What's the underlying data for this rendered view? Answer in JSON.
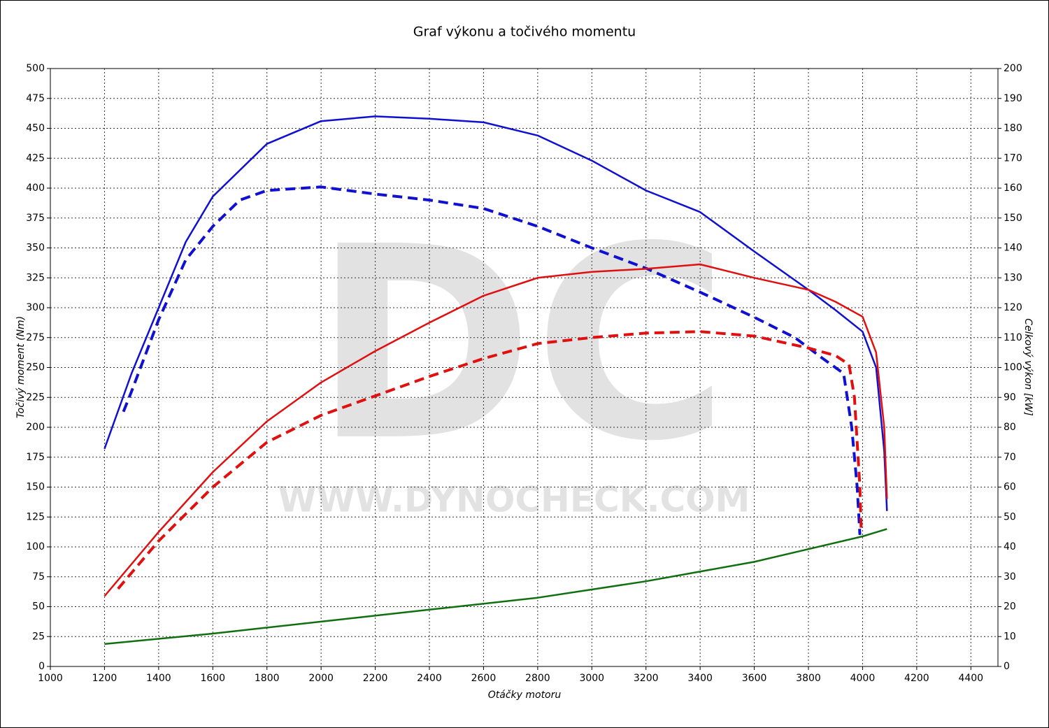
{
  "chart_data": {
    "type": "line",
    "title": "Graf výkonu a točivého momentu",
    "xlabel": "Otáčky motoru",
    "ylabel": "Točivý moment (Nm)",
    "y2label": "Celkový výkon [kW]",
    "watermark": {
      "logo": "DC",
      "url": "WWW.DYNOCHECK.COM"
    },
    "xlim": [
      1000,
      4500
    ],
    "xticks": [
      1000,
      1200,
      1400,
      1600,
      1800,
      2000,
      2200,
      2400,
      2600,
      2800,
      3000,
      3200,
      3400,
      3600,
      3800,
      4000,
      4200,
      4400
    ],
    "ylim": [
      0,
      500
    ],
    "yticks": [
      0,
      25,
      50,
      75,
      100,
      125,
      150,
      175,
      200,
      225,
      250,
      275,
      300,
      325,
      350,
      375,
      400,
      425,
      450,
      475,
      500
    ],
    "y2lim": [
      0,
      200
    ],
    "y2ticks": [
      0,
      10,
      20,
      30,
      40,
      50,
      60,
      70,
      80,
      90,
      100,
      110,
      120,
      130,
      140,
      150,
      160,
      170,
      180,
      190,
      200
    ],
    "grid": true,
    "series": [
      {
        "color": "#1010d0",
        "dashed": false,
        "x": [
          1200,
          1300,
          1400,
          1500,
          1600,
          1800,
          2000,
          2200,
          2400,
          2600,
          2800,
          3000,
          3200,
          3400,
          3600,
          3800,
          3900,
          4000,
          4050,
          4080,
          4090
        ],
        "values": [
          182,
          245,
          300,
          355,
          393,
          437,
          456,
          460,
          458,
          455,
          444,
          423,
          398,
          380,
          347,
          315,
          298,
          280,
          250,
          180,
          130
        ]
      },
      {
        "color": "#1010d0",
        "dashed": true,
        "x": [
          1270,
          1300,
          1400,
          1500,
          1600,
          1700,
          1800,
          2000,
          2200,
          2400,
          2600,
          2800,
          3000,
          3200,
          3400,
          3600,
          3750,
          3850,
          3930,
          3960,
          3980,
          3990
        ],
        "values": [
          213,
          230,
          290,
          340,
          368,
          390,
          398,
          401,
          395,
          390,
          383,
          368,
          350,
          333,
          313,
          292,
          275,
          258,
          245,
          200,
          150,
          110
        ]
      },
      {
        "color": "#e01010",
        "dashed": false,
        "axis": "y2",
        "x": [
          1200,
          1400,
          1600,
          1800,
          2000,
          2200,
          2400,
          2600,
          2800,
          3000,
          3200,
          3400,
          3600,
          3800,
          3900,
          4000,
          4050,
          4080,
          4090
        ],
        "values": [
          23.5,
          45,
          65,
          82,
          95,
          105.5,
          115,
          124,
          130,
          132,
          133,
          134.5,
          130,
          126,
          122,
          117,
          105,
          80,
          56
        ]
      },
      {
        "color": "#e01010",
        "dashed": true,
        "axis": "y2",
        "x": [
          1250,
          1400,
          1600,
          1800,
          2000,
          2200,
          2400,
          2600,
          2800,
          3000,
          3200,
          3400,
          3600,
          3800,
          3900,
          3950,
          3970,
          3990,
          3995
        ],
        "values": [
          26,
          42,
          60,
          75,
          84,
          90.5,
          97,
          103,
          108,
          110,
          111.5,
          112,
          110.5,
          106.5,
          104,
          101,
          90,
          60,
          45
        ]
      },
      {
        "color": "#107010",
        "dashed": false,
        "axis": "y2",
        "x": [
          1200,
          1600,
          2000,
          2400,
          2800,
          3200,
          3600,
          4000,
          4090
        ],
        "values": [
          7.5,
          11,
          15,
          19,
          23,
          28.5,
          35,
          43.5,
          46
        ]
      }
    ]
  }
}
